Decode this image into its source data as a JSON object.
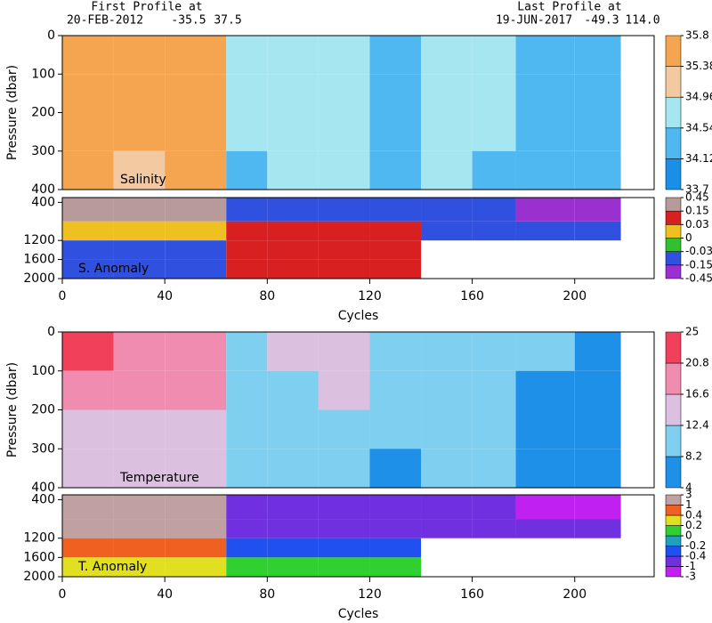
{
  "header": {
    "first_title": "First Profile at",
    "first_date": "20-FEB-2012",
    "first_lat": "-35.5",
    "first_lon": "37.5",
    "last_title": "Last Profile at",
    "last_date": "19-JUN-2017",
    "last_lat": "-49.3",
    "last_lon": "114.0"
  },
  "chart_data": [
    {
      "type": "heatmap",
      "label": "Salinity",
      "ylabel": "Pressure (dbar)",
      "xlim": [
        0,
        231
      ],
      "ylim": [
        0,
        400
      ],
      "yticks": [
        0,
        100,
        200,
        300,
        400
      ],
      "x_edges": [
        0,
        20,
        40,
        64,
        80,
        100,
        120,
        140,
        160,
        177,
        200,
        218
      ],
      "y_edges": [
        0,
        100,
        200,
        300,
        400
      ],
      "values": [
        [
          35.6,
          35.6,
          35.6,
          34.6,
          34.8,
          34.9,
          34.5,
          34.7,
          34.6,
          34.3,
          34.3
        ],
        [
          35.5,
          35.5,
          35.5,
          34.6,
          34.8,
          34.9,
          34.5,
          34.7,
          34.6,
          34.3,
          34.3
        ],
        [
          35.4,
          35.4,
          35.4,
          34.6,
          34.7,
          34.8,
          34.5,
          34.6,
          34.6,
          34.3,
          34.3
        ],
        [
          35.4,
          35.3,
          35.4,
          34.5,
          34.6,
          34.7,
          34.4,
          34.6,
          34.5,
          34.3,
          34.2
        ]
      ],
      "colorbar": {
        "ticks": [
          33.7,
          34.12,
          34.54,
          34.96,
          35.38,
          35.8
        ],
        "colors": [
          "#1a8fe8",
          "#4fb8f0",
          "#a6e6f0",
          "#f2c9a0",
          "#f5a550"
        ]
      }
    },
    {
      "type": "heatmap",
      "label": "S. Anomaly",
      "xlabel": "Cycles",
      "xlim": [
        0,
        231
      ],
      "xticks": [
        0,
        40,
        80,
        120,
        160,
        200
      ],
      "ylim": [
        300,
        2000
      ],
      "yticks": [
        400,
        1200,
        1600,
        2000
      ],
      "x_edges": [
        0,
        20,
        40,
        64,
        80,
        100,
        120,
        140,
        160,
        177,
        200,
        218
      ],
      "y_edges": [
        300,
        800,
        1200,
        1600,
        2000
      ],
      "values": [
        [
          0.3,
          0.3,
          0.3,
          -0.1,
          -0.1,
          -0.1,
          -0.1,
          -0.1,
          -0.1,
          -0.3,
          -0.3
        ],
        [
          0.02,
          0.02,
          0.02,
          0.1,
          0.1,
          0.1,
          0.1,
          -0.1,
          -0.1,
          -0.1,
          -0.1
        ],
        [
          -0.1,
          -0.1,
          -0.1,
          0.1,
          0.1,
          0.1,
          0.1,
          null,
          null,
          null,
          null
        ],
        [
          -0.1,
          -0.1,
          -0.1,
          0.1,
          0.1,
          0.1,
          0.1,
          null,
          null,
          null,
          null
        ]
      ],
      "colorbar": {
        "ticks": [
          -0.45,
          -0.15,
          -0.03,
          0,
          0.03,
          0.15,
          0.45
        ],
        "colors": [
          "#9b30d0",
          "#3050e0",
          "#30c030",
          "#f0c020",
          "#d82020",
          "#b89a9a"
        ]
      }
    },
    {
      "type": "heatmap",
      "label": "Temperature",
      "ylabel": "Pressure (dbar)",
      "xlim": [
        0,
        231
      ],
      "ylim": [
        0,
        400
      ],
      "yticks": [
        0,
        100,
        200,
        300,
        400
      ],
      "x_edges": [
        0,
        20,
        40,
        64,
        80,
        100,
        120,
        140,
        160,
        177,
        200,
        218
      ],
      "y_edges": [
        0,
        100,
        200,
        300,
        400
      ],
      "values": [
        [
          21,
          19,
          19,
          11,
          13,
          14,
          10,
          12,
          12,
          9,
          8
        ],
        [
          17,
          17,
          17,
          11,
          12,
          13,
          9,
          11,
          11,
          8,
          7
        ],
        [
          16,
          16,
          16,
          10,
          11,
          12,
          9,
          10,
          10,
          7,
          7
        ],
        [
          15,
          15,
          15,
          10,
          10,
          11,
          8,
          9,
          10,
          7,
          6
        ]
      ],
      "colorbar": {
        "ticks": [
          4,
          8.2,
          12.4,
          16.6,
          20.8,
          25
        ],
        "colors": [
          "#1e90e8",
          "#7fd0f0",
          "#dcc0e0",
          "#f08cb0",
          "#f0405a"
        ]
      }
    },
    {
      "type": "heatmap",
      "label": "T. Anomaly",
      "xlabel": "Cycles",
      "xlim": [
        0,
        231
      ],
      "xticks": [
        0,
        40,
        80,
        120,
        160,
        200
      ],
      "ylim": [
        300,
        2000
      ],
      "yticks": [
        400,
        1200,
        1600,
        2000
      ],
      "x_edges": [
        0,
        20,
        40,
        64,
        80,
        100,
        120,
        140,
        160,
        177,
        200,
        218
      ],
      "y_edges": [
        300,
        800,
        1200,
        1600,
        2000
      ],
      "values": [
        [
          2,
          2,
          2,
          -0.7,
          -0.7,
          -0.7,
          -0.7,
          -0.7,
          -0.7,
          -2,
          -2
        ],
        [
          1.5,
          1.5,
          1.5,
          -0.7,
          -0.7,
          -0.7,
          -0.7,
          -0.7,
          -0.7,
          -0.7,
          -0.7
        ],
        [
          0.6,
          0.6,
          0.6,
          -0.3,
          -0.3,
          -0.3,
          -0.3,
          null,
          null,
          null,
          null
        ],
        [
          0.3,
          0.3,
          0.3,
          0.1,
          0.1,
          0.1,
          0.1,
          null,
          null,
          null,
          null
        ]
      ],
      "colorbar": {
        "ticks": [
          -3,
          -1,
          -0.4,
          -0.2,
          0,
          0.2,
          0.4,
          1,
          3
        ],
        "colors": [
          "#c020f0",
          "#7030e0",
          "#2050f0",
          "#20a0c0",
          "#30d030",
          "#e0e020",
          "#f06020",
          "#c0a0a0"
        ]
      }
    }
  ]
}
